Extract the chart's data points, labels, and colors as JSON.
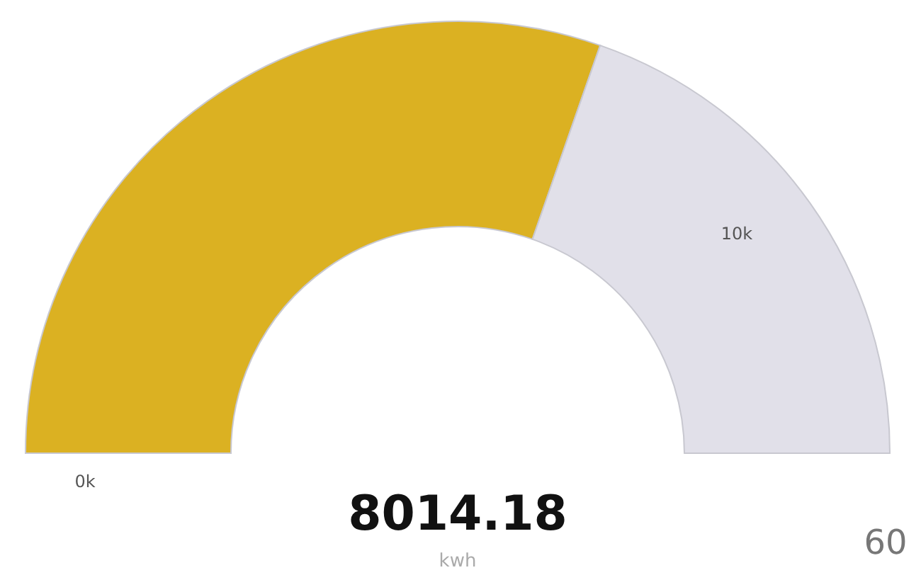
{
  "chart_data": {
    "type": "donut",
    "categories": [
      null,
      null
    ],
    "values": [
      60.7,
      39.3
    ],
    "colors": [
      "#dbb122",
      "#e1e0e9"
    ],
    "annotations": [
      "0k",
      "10k",
      "8014.18",
      "kwh",
      "60"
    ]
  }
}
